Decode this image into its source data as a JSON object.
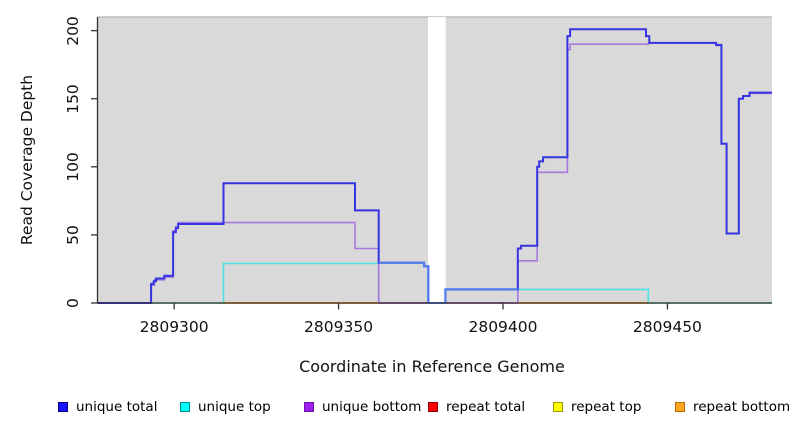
{
  "chart_data": {
    "type": "line",
    "title": "",
    "xlabel": "Coordinate in Reference Genome",
    "ylabel": "Read Coverage Depth",
    "xlim": [
      2809276.7,
      2809481.8
    ],
    "ylim": [
      0,
      210
    ],
    "x_ticks": [
      2809300,
      2809350,
      2809400,
      2809450
    ],
    "y_ticks": [
      0,
      50,
      100,
      150,
      200
    ],
    "grid": false,
    "plot_background": "#d9d9d9",
    "plot_top_edge_color": "#bdbdbd",
    "axis_color": "#333333",
    "gap_region": {
      "x0": 2809377.2,
      "x1": 2809382.6,
      "color": "#ffffff"
    },
    "legend_position": "bottom",
    "legend": [
      {
        "label": "unique total",
        "color": "#1414ff",
        "border": "#000080",
        "x": 58
      },
      {
        "label": "unique top",
        "color": "#00ffff",
        "border": "#008b8b",
        "x": 180
      },
      {
        "label": "unique bottom",
        "color": "#a020f0",
        "border": "#6a0dad",
        "x": 304
      },
      {
        "label": "repeat total",
        "color": "#ff0000",
        "border": "#8b0000",
        "x": 428
      },
      {
        "label": "repeat top",
        "color": "#ffff00",
        "border": "#9a9a00",
        "x": 553
      },
      {
        "label": "repeat bottom",
        "color": "#ffa428",
        "border": "#b36b00",
        "x": 675
      }
    ],
    "series": [
      {
        "name": "unique top",
        "color": "#4ce0e4",
        "width": 1.6,
        "points": [
          [
            2809276.7,
            0
          ],
          [
            2809315,
            29
          ],
          [
            2809362.2,
            0
          ],
          [
            2809382.5,
            10
          ],
          [
            2809444.2,
            0
          ],
          [
            2809481.8,
            0
          ]
        ]
      },
      {
        "name": "zero line green left",
        "color": "#8fd69e",
        "width": 1.8,
        "points": [
          [
            2809293,
            0
          ],
          [
            2809315,
            0
          ]
        ]
      },
      {
        "name": "zero line green right",
        "color": "#8fd69e",
        "width": 1.8,
        "points": [
          [
            2809444.2,
            0
          ],
          [
            2809481.8,
            0
          ]
        ]
      },
      {
        "name": "repeat total",
        "color": "#d6496f",
        "width": 1.8,
        "points": [
          [
            2809362.2,
            0
          ],
          [
            2809404.5,
            0
          ]
        ]
      },
      {
        "name": "repeat bottom left",
        "color": "#ff9420",
        "width": 1.8,
        "points": [
          [
            2809315,
            0
          ],
          [
            2809362.2,
            0
          ]
        ]
      },
      {
        "name": "repeat bottom right",
        "color": "#ff9420",
        "width": 1.8,
        "points": [
          [
            2809404.5,
            0
          ],
          [
            2809444.2,
            0
          ]
        ]
      },
      {
        "name": "unique bottom",
        "color": "#a878de",
        "width": 1.6,
        "points": [
          [
            2809276.7,
            0
          ],
          [
            2809293,
            13
          ],
          [
            2809294,
            17
          ],
          [
            2809297,
            19
          ],
          [
            2809299.7,
            53
          ],
          [
            2809300.5,
            56
          ],
          [
            2809301.2,
            59
          ],
          [
            2809355,
            40
          ],
          [
            2809362.2,
            0
          ],
          [
            2809404.5,
            31
          ],
          [
            2809410.4,
            96
          ],
          [
            2809419.6,
            186
          ],
          [
            2809420.4,
            190
          ],
          [
            2809444.2,
            191
          ],
          [
            2809464.8,
            189
          ],
          [
            2809466.4,
            117
          ],
          [
            2809468,
            51
          ],
          [
            2809471.7,
            150
          ],
          [
            2809473,
            152
          ],
          [
            2809475,
            154
          ],
          [
            2809481.8,
            154
          ]
        ]
      },
      {
        "name": "unique total",
        "color": "#3434e2",
        "width": 2.0,
        "points": [
          [
            2809276.7,
            0
          ],
          [
            2809293,
            14
          ],
          [
            2809293.8,
            16
          ],
          [
            2809294.5,
            18
          ],
          [
            2809297,
            20
          ],
          [
            2809299.7,
            52
          ],
          [
            2809300.5,
            55
          ],
          [
            2809301.2,
            58
          ],
          [
            2809315,
            88
          ],
          [
            2809355,
            68
          ],
          [
            2809362.2,
            29.5
          ],
          [
            2809376,
            27
          ],
          [
            2809377.3,
            0
          ],
          [
            2809382.5,
            10
          ],
          [
            2809404.5,
            40
          ],
          [
            2809405.5,
            42
          ],
          [
            2809410.4,
            100
          ],
          [
            2809411,
            104
          ],
          [
            2809412.2,
            107
          ],
          [
            2809419.6,
            196
          ],
          [
            2809420.4,
            201
          ],
          [
            2809443.5,
            196
          ],
          [
            2809444.5,
            191
          ],
          [
            2809464.8,
            189.5
          ],
          [
            2809466.4,
            117
          ],
          [
            2809468,
            51
          ],
          [
            2809471.7,
            150
          ],
          [
            2809473,
            152
          ],
          [
            2809475,
            154.5
          ],
          [
            2809481.8,
            154.5
          ]
        ]
      },
      {
        "name": "unique total light segment",
        "color": "#4f7df0",
        "width": 2.0,
        "points": [
          [
            2809362.2,
            29.5
          ],
          [
            2809376,
            27
          ],
          [
            2809377.3,
            0
          ],
          [
            2809382.5,
            10
          ],
          [
            2809404.5,
            10
          ]
        ]
      }
    ]
  }
}
